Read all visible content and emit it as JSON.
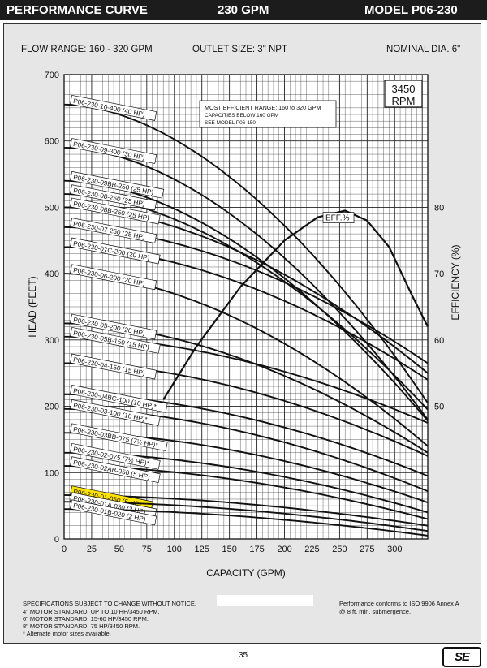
{
  "header": {
    "title": "PERFORMANCE CURVE",
    "flow": "230 GPM",
    "model": "MODEL  P06-230"
  },
  "specs": {
    "flow_range": "FLOW RANGE: 160 - 320 GPM",
    "outlet": "OUTLET SIZE: 3\" NPT",
    "nominal_dia": "NOMINAL DIA. 6\""
  },
  "footer": {
    "notice": "SPECIFICATIONS SUBJECT TO CHANGE WITHOUT NOTICE.",
    "motor_4": "4\" MOTOR STANDARD, UP TO 10 HP/3450 RPM.",
    "motor_6": "6\" MOTOR STANDARD, 15-60 HP/3450 RPM.",
    "motor_8": "8\" MOTOR STANDARD, 75 HP/3450 RPM.",
    "alt": "* Alternate motor sizes available.",
    "iso": "Performance conforms to ISO 9906 Annex A",
    "submergence": "@ 8 ft. min. submergence.",
    "page": "35",
    "logo": "SE"
  },
  "chart_data": {
    "type": "line",
    "xlabel": "CAPACITY (GPM)",
    "ylabel": "HEAD (FEET)",
    "y2label": "EFFICIENCY (%)",
    "xlim": [
      0,
      330
    ],
    "ylim": [
      0,
      700
    ],
    "y2lim": [
      30,
      100
    ],
    "xticks": [
      0,
      25,
      50,
      75,
      100,
      125,
      150,
      175,
      200,
      225,
      250,
      275,
      300
    ],
    "yticks": [
      0,
      100,
      200,
      300,
      400,
      500,
      600,
      700
    ],
    "y2ticks": [
      50,
      60,
      70,
      80
    ],
    "grid": true,
    "rpm": "3450\nRPM",
    "note": [
      "MOST EFFICIENT RANGE: 160 to 320 GPM",
      "CAPACITIES BELOW 160 GPM",
      "SEE  MODEL P06-150"
    ],
    "eff_label": "EFF.%",
    "efficiency": {
      "x": [
        90,
        120,
        160,
        200,
        230,
        255,
        275,
        295,
        315,
        330
      ],
      "y": [
        51,
        59,
        68,
        75,
        78.5,
        79.5,
        78,
        74,
        67,
        62
      ]
    },
    "series": [
      {
        "name": "P06-230-10-400 (40 HP)",
        "shutoff": 655,
        "at330": 205
      },
      {
        "name": "P06-230-09-300 (30 HP)",
        "shutoff": 590,
        "at330": 180
      },
      {
        "name": "P06-230-09BB-250 (25 HP)",
        "shutoff": 540,
        "at330": 178
      },
      {
        "name": "P06-230-08-250 (25 HP)",
        "shutoff": 520,
        "at330": 195
      },
      {
        "name": "P06-230-08B-250 (25 HP)",
        "shutoff": 500,
        "at330": 250
      },
      {
        "name": "P06-230-07-250 (25 HP)",
        "shutoff": 470,
        "at330": 265
      },
      {
        "name": "P06-230-07C-200 (20 HP)",
        "shutoff": 440,
        "at330": 240
      },
      {
        "name": "P06-230-06-200 (20 HP)",
        "shutoff": 400,
        "at330": 140
      },
      {
        "name": "P06-230-05-200 (20 HP)",
        "shutoff": 325,
        "at330": 130
      },
      {
        "name": "P06-230-05B-150 (15 HP)",
        "shutoff": 305,
        "at330": 175
      },
      {
        "name": "P06-230-04-150 (15 HP)",
        "shutoff": 265,
        "at330": 125
      },
      {
        "name": "P06-230-04BC-100 (10 HP)*",
        "shutoff": 218,
        "at330": 95
      },
      {
        "name": "P06-230-03-100 (10 HP)*",
        "shutoff": 196,
        "at330": 72
      },
      {
        "name": "P06-230-03BB-075 (7½ HP)*",
        "shutoff": 160,
        "at330": 55
      },
      {
        "name": "P06-230-02-075 (7½ HP)*",
        "shutoff": 130,
        "at330": 40
      },
      {
        "name": "P06-230-02AB-050 (5 HP)",
        "shutoff": 110,
        "at330": 30
      },
      {
        "name": "P06-230-01-050 (5 HP)",
        "shutoff": 66,
        "at330": 20,
        "highlight": true
      },
      {
        "name": "P06-230-01A-030 (3 HP)",
        "shutoff": 56,
        "at330": 12
      },
      {
        "name": "P06-230-01B-020 (2 HP)",
        "shutoff": 45,
        "at330": 5
      }
    ]
  }
}
